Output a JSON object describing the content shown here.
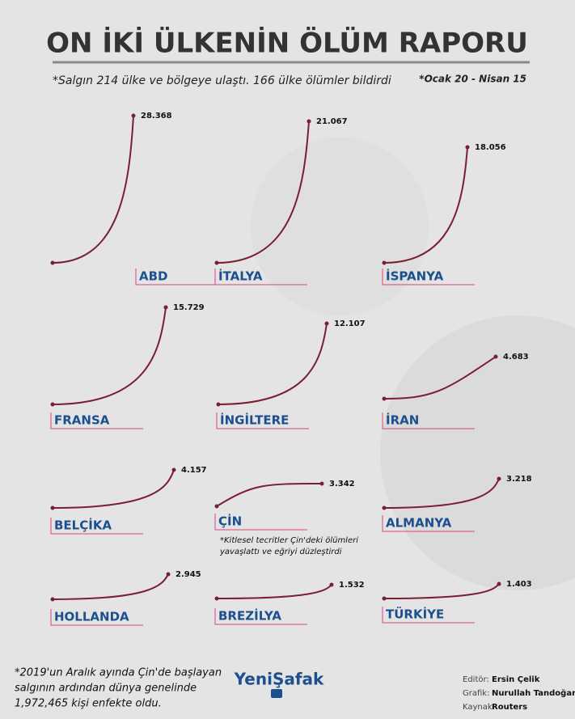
{
  "header": {
    "title": "ON İKİ ÜLKENİN ÖLÜM RAPORU",
    "subtitle": "*Salgın 214 ülke ve bölgeye ulaştı. 166 ülke ölümler bildirdi",
    "period": "*Ocak 20 - Nisan 15"
  },
  "panels": [
    {
      "name": "ABD",
      "value": "28.368"
    },
    {
      "name": "İTALYA",
      "value": "21.067"
    },
    {
      "name": "İSPANYA",
      "value": "18.056"
    },
    {
      "name": "FRANSA",
      "value": "15.729"
    },
    {
      "name": "İNGİLTERE",
      "value": "12.107"
    },
    {
      "name": "İRAN",
      "value": "4.683"
    },
    {
      "name": "BELÇİKA",
      "value": "4.157"
    },
    {
      "name": "ÇİN",
      "value": "3.342",
      "note": [
        "*Kitlesel tecritler Çin'deki ölümleri",
        "yavaşlattı ve eğriyi düzleştirdi"
      ]
    },
    {
      "name": "ALMANYA",
      "value": "3.218"
    },
    {
      "name": "HOLLANDA",
      "value": "2.945"
    },
    {
      "name": "BREZİLYA",
      "value": "1.532"
    },
    {
      "name": "TÜRKİYE",
      "value": "1.403"
    }
  ],
  "footer": {
    "note": [
      "*2019'un Aralık ayında Çin'de başlayan",
      "salgının ardından dünya genelinde",
      "1,972,465 kişi enfekte oldu."
    ],
    "logo": "YeniŞafak",
    "credits": [
      {
        "role": "Editör:",
        "name": "Ersin Çelik"
      },
      {
        "role": "Grafik:",
        "name": "Nurullah Tandoğan"
      },
      {
        "role": "Kaynak:",
        "name": "Routers"
      }
    ]
  }
}
